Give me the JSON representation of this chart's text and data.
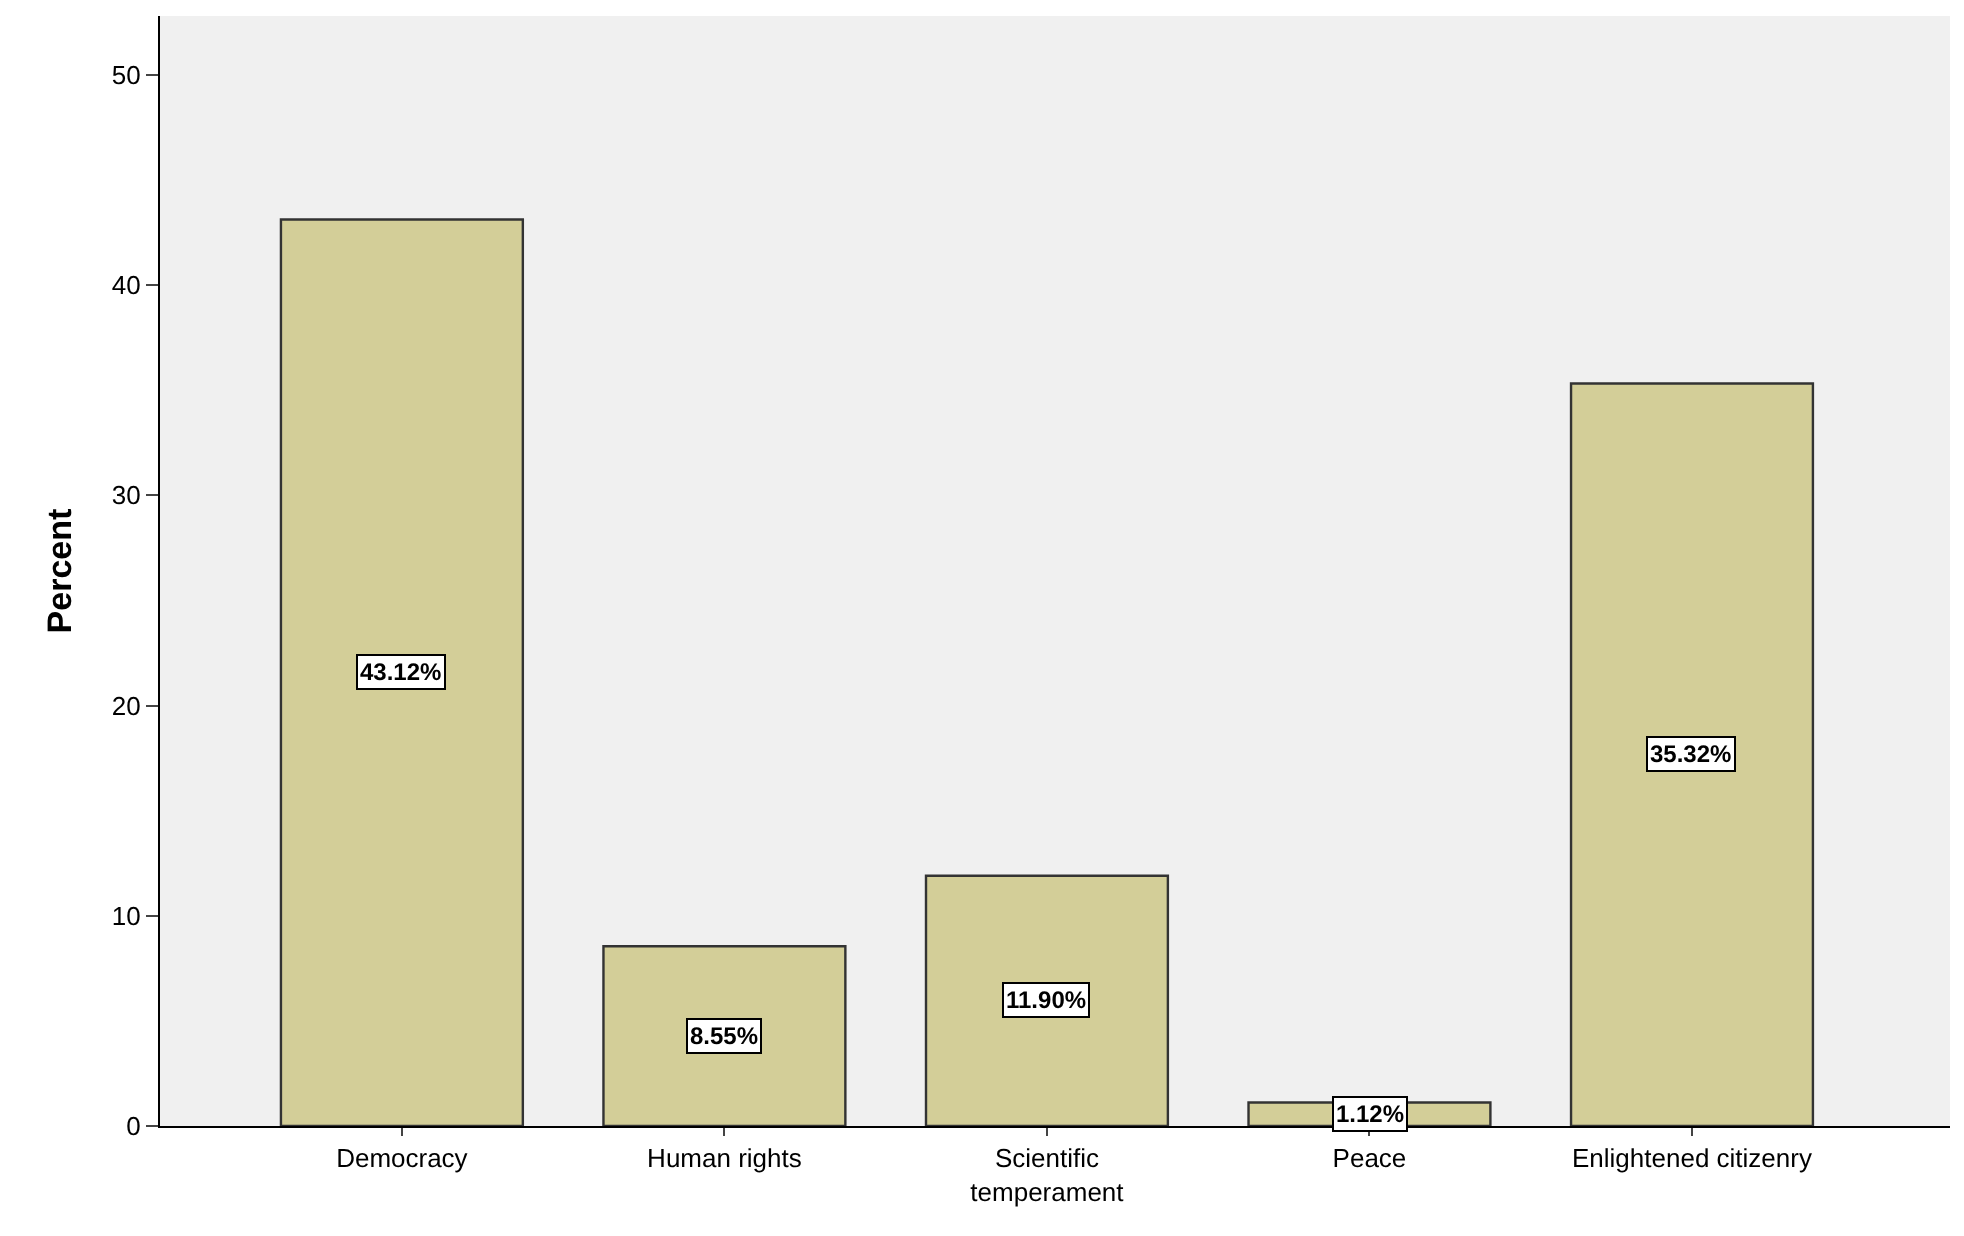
{
  "chart_data": {
    "type": "bar",
    "ylabel": "Percent",
    "categories": [
      "Democracy",
      "Human rights",
      "Scientific\ntemperament",
      "Peace",
      "Enlightened citizenry"
    ],
    "values": [
      43.12,
      8.55,
      11.9,
      1.12,
      35.32
    ],
    "value_labels": [
      "43.12%",
      "8.55%",
      "11.90%",
      "1.12%",
      "35.32%"
    ],
    "color": "#d3ce98",
    "ylim": [
      0,
      52.8
    ],
    "yticks": [
      0,
      10,
      20,
      30,
      40,
      50
    ],
    "grid": false,
    "legend": false
  }
}
